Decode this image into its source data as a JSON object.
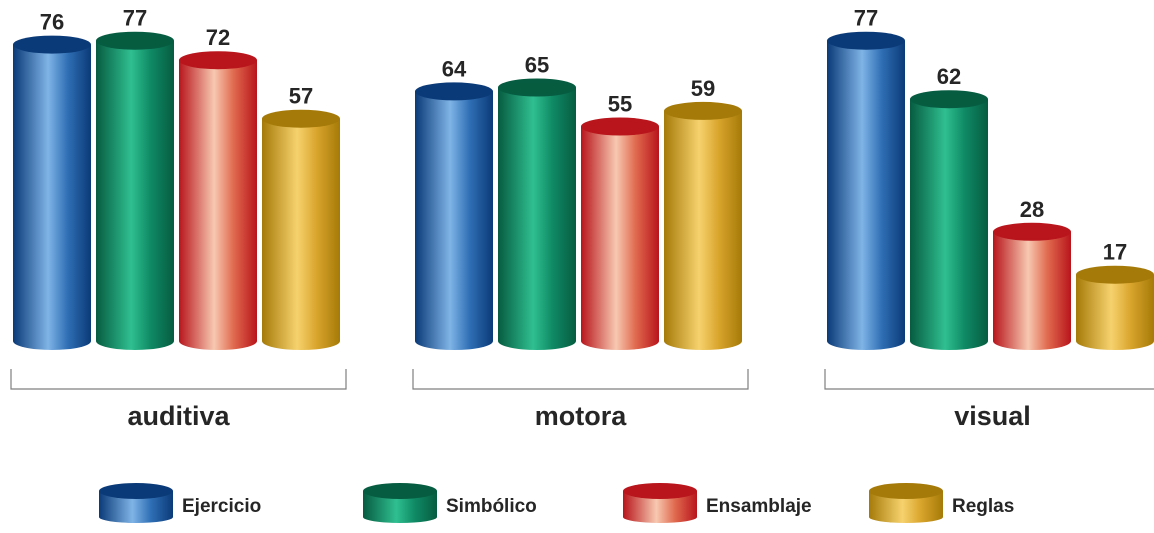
{
  "chart_data": {
    "type": "bar",
    "categories": [
      "auditiva",
      "motora",
      "visual"
    ],
    "series": [
      {
        "name": "Ejercicio",
        "values": [
          76,
          64,
          77
        ],
        "color": "#2f6fb5",
        "dark": "#0b3a78",
        "light": "#7fb4e6"
      },
      {
        "name": "Simbólico",
        "values": [
          77,
          65,
          62
        ],
        "color": "#0f8a64",
        "dark": "#065c40",
        "light": "#2fbf90"
      },
      {
        "name": "Ensamblaje",
        "values": [
          72,
          55,
          28
        ],
        "color": "#e06a4f",
        "dark": "#b8151c",
        "light": "#f7c8b0"
      },
      {
        "name": "Reglas",
        "values": [
          57,
          59,
          17
        ],
        "color": "#d9a52c",
        "dark": "#a57a08",
        "light": "#f6d26e"
      }
    ],
    "ylim": [
      0,
      80
    ],
    "legend": "bottom",
    "grid": false,
    "data_labels": true
  }
}
